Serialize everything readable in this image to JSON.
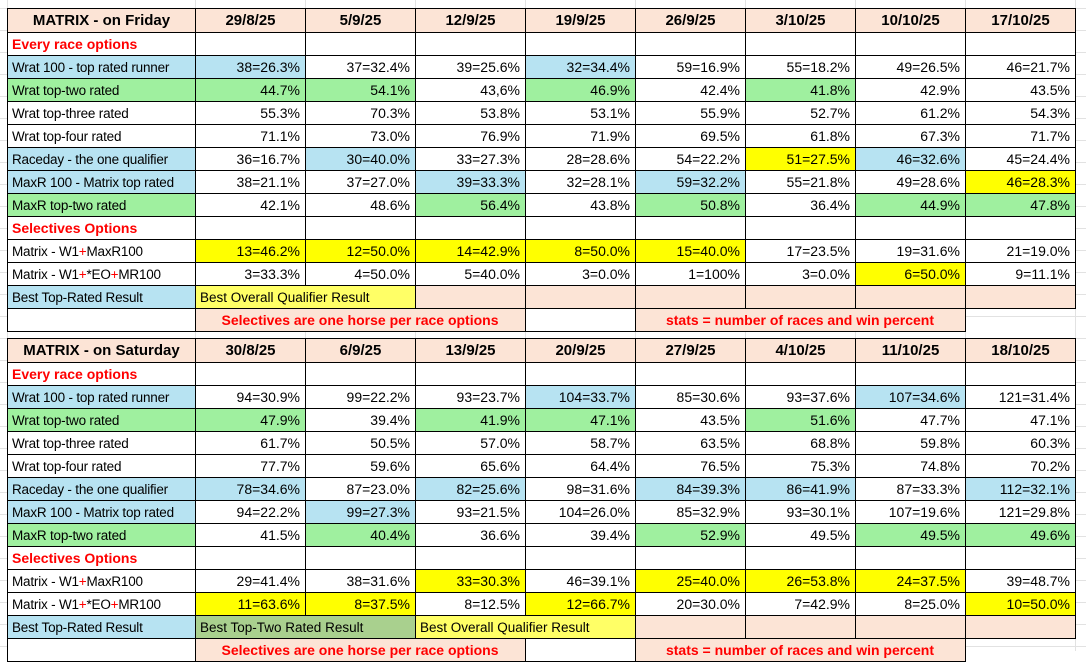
{
  "colors": {
    "header_peach": "#fce4d6",
    "highlight_blue": "#b7e3f2",
    "highlight_green": "#9ff09f",
    "highlight_yellow": "#ffff00",
    "result_yellow": "#ffff66",
    "result_green": "#a9d08e",
    "banner_red": "#ff0000",
    "gridline": "#e2e2e2"
  },
  "tables": [
    {
      "title": "MATRIX - on Friday",
      "dates": [
        "29/8/25",
        "5/9/25",
        "12/9/25",
        "19/9/25",
        "26/9/25",
        "3/10/25",
        "10/10/25",
        "17/10/25"
      ],
      "rows": [
        {
          "type": "section",
          "label": "Every race options"
        },
        {
          "type": "data",
          "label": "Wrat 100 - top rated runner",
          "label_bg": "b",
          "cells": [
            [
              "38=26.3%",
              "b"
            ],
            [
              "37=32.4%",
              ""
            ],
            [
              "39=25.6%",
              ""
            ],
            [
              "32=34.4%",
              "b"
            ],
            [
              "59=16.9%",
              ""
            ],
            [
              "55=18.2%",
              ""
            ],
            [
              "49=26.5%",
              ""
            ],
            [
              "46=21.7%",
              ""
            ]
          ]
        },
        {
          "type": "data",
          "label": "Wrat top-two rated",
          "label_bg": "g",
          "cells": [
            [
              "44.7%",
              "g"
            ],
            [
              "54.1%",
              "g"
            ],
            [
              "43,6%",
              ""
            ],
            [
              "46.9%",
              "g"
            ],
            [
              "42.4%",
              ""
            ],
            [
              "41.8%",
              "g"
            ],
            [
              "42.9%",
              ""
            ],
            [
              "43.5%",
              ""
            ]
          ]
        },
        {
          "type": "data",
          "label": "Wrat top-three rated",
          "label_bg": "",
          "cells": [
            [
              "55.3%",
              ""
            ],
            [
              "70.3%",
              ""
            ],
            [
              "53.8%",
              ""
            ],
            [
              "53.1%",
              ""
            ],
            [
              "55.9%",
              ""
            ],
            [
              "52.7%",
              ""
            ],
            [
              "61.2%",
              ""
            ],
            [
              "54.3%",
              ""
            ]
          ]
        },
        {
          "type": "data",
          "label": "Wrat top-four rated",
          "label_bg": "",
          "cells": [
            [
              "71.1%",
              ""
            ],
            [
              "73.0%",
              ""
            ],
            [
              "76.9%",
              ""
            ],
            [
              "71.9%",
              ""
            ],
            [
              "69.5%",
              ""
            ],
            [
              "61.8%",
              ""
            ],
            [
              "67.3%",
              ""
            ],
            [
              "71.7%",
              ""
            ]
          ]
        },
        {
          "type": "data",
          "label": "Raceday - the one qualifier",
          "label_bg": "b",
          "cells": [
            [
              "36=16.7%",
              ""
            ],
            [
              "30=40.0%",
              "b"
            ],
            [
              "33=27.3%",
              ""
            ],
            [
              "28=28.6%",
              ""
            ],
            [
              "54=22.2%",
              ""
            ],
            [
              "51=27.5%",
              "y"
            ],
            [
              "46=32.6%",
              "b"
            ],
            [
              "45=24.4%",
              ""
            ]
          ]
        },
        {
          "type": "data",
          "label": "MaxR 100 - Matrix top rated",
          "label_bg": "b",
          "cells": [
            [
              "38=21.1%",
              ""
            ],
            [
              "37=27.0%",
              ""
            ],
            [
              "39=33.3%",
              "b"
            ],
            [
              "32=28.1%",
              ""
            ],
            [
              "59=32.2%",
              "b"
            ],
            [
              "55=21.8%",
              ""
            ],
            [
              "49=28.6%",
              ""
            ],
            [
              "46=28.3%",
              "y"
            ]
          ]
        },
        {
          "type": "data",
          "label": "MaxR top-two rated",
          "label_bg": "g",
          "cells": [
            [
              "42.1%",
              ""
            ],
            [
              "48.6%",
              ""
            ],
            [
              "56.4%",
              "g"
            ],
            [
              "43.8%",
              ""
            ],
            [
              "50.8%",
              "g"
            ],
            [
              "36.4%",
              ""
            ],
            [
              "44.9%",
              "g"
            ],
            [
              "47.8%",
              "g"
            ]
          ]
        },
        {
          "type": "section",
          "label": "Selectives Options"
        },
        {
          "type": "data",
          "label_parts": [
            [
              "Matrix - W1",
              ""
            ],
            [
              "+",
              "red"
            ],
            [
              "MaxR100",
              ""
            ]
          ],
          "label_bg": "",
          "cells": [
            [
              "13=46.2%",
              "y"
            ],
            [
              "12=50.0%",
              "y"
            ],
            [
              "14=42.9%",
              "y"
            ],
            [
              "8=50.0%",
              "y"
            ],
            [
              "15=40.0%",
              "y"
            ],
            [
              "17=23.5%",
              ""
            ],
            [
              "19=31.6%",
              ""
            ],
            [
              "21=19.0%",
              ""
            ]
          ]
        },
        {
          "type": "data",
          "label_parts": [
            [
              "Matrix - W1",
              ""
            ],
            [
              "+",
              "red"
            ],
            [
              "*EO",
              ""
            ],
            [
              "+",
              "red"
            ],
            [
              "MR100",
              ""
            ]
          ],
          "label_bg": "",
          "cells": [
            [
              "3=33.3%",
              ""
            ],
            [
              "4=50.0%",
              ""
            ],
            [
              "5=40.0%",
              ""
            ],
            [
              "3=0.0%",
              ""
            ],
            [
              "1=100%",
              ""
            ],
            [
              "3=0.0%",
              ""
            ],
            [
              "6=50.0%",
              "y"
            ],
            [
              "9=11.1%",
              ""
            ]
          ]
        }
      ],
      "best_row": {
        "label": "Best Top-Rated Result",
        "spans": [
          {
            "text": "Best Overall Qualifier Result",
            "bg": "py",
            "cols": 2
          }
        ],
        "trailing_cells": 6
      },
      "footer": {
        "selectives": "Selectives are one horse per race options",
        "stats": "stats = number of races and win percent"
      }
    },
    {
      "title": "MATRIX - on Saturday",
      "dates": [
        "30/8/25",
        "6/9/25",
        "13/9/25",
        "20/9/25",
        "27/9/25",
        "4/10/25",
        "11/10/25",
        "18/10/25"
      ],
      "rows": [
        {
          "type": "section",
          "label": "Every race options"
        },
        {
          "type": "data",
          "label": "Wrat 100 - top rated runner",
          "label_bg": "b",
          "cells": [
            [
              "94=30.9%",
              ""
            ],
            [
              "99=22.2%",
              ""
            ],
            [
              "93=23.7%",
              ""
            ],
            [
              "104=33.7%",
              "b"
            ],
            [
              "85=30.6%",
              ""
            ],
            [
              "93=37.6%",
              ""
            ],
            [
              "107=34.6%",
              "b"
            ],
            [
              "121=31.4%",
              ""
            ]
          ]
        },
        {
          "type": "data",
          "label": "Wrat top-two rated",
          "label_bg": "g",
          "cells": [
            [
              "47.9%",
              "g"
            ],
            [
              "39.4%",
              ""
            ],
            [
              "41.9%",
              "g"
            ],
            [
              "47.1%",
              "g"
            ],
            [
              "43.5%",
              ""
            ],
            [
              "51.6%",
              "g"
            ],
            [
              "47.7%",
              ""
            ],
            [
              "47.1%",
              ""
            ]
          ]
        },
        {
          "type": "data",
          "label": "Wrat top-three rated",
          "label_bg": "",
          "cells": [
            [
              "61.7%",
              ""
            ],
            [
              "50.5%",
              ""
            ],
            [
              "57.0%",
              ""
            ],
            [
              "58.7%",
              ""
            ],
            [
              "63.5%",
              ""
            ],
            [
              "68.8%",
              ""
            ],
            [
              "59.8%",
              ""
            ],
            [
              "60.3%",
              ""
            ]
          ]
        },
        {
          "type": "data",
          "label": "Wrat top-four rated",
          "label_bg": "",
          "cells": [
            [
              "77.7%",
              ""
            ],
            [
              "59.6%",
              ""
            ],
            [
              "65.6%",
              ""
            ],
            [
              "64.4%",
              ""
            ],
            [
              "76.5%",
              ""
            ],
            [
              "75.3%",
              ""
            ],
            [
              "74.8%",
              ""
            ],
            [
              "70.2%",
              ""
            ]
          ]
        },
        {
          "type": "data",
          "label": "Raceday - the one qualifier",
          "label_bg": "b",
          "cells": [
            [
              "78=34.6%",
              "b"
            ],
            [
              "87=23.0%",
              ""
            ],
            [
              "82=25.6%",
              "b"
            ],
            [
              "98=31.6%",
              ""
            ],
            [
              "84=39.3%",
              "b"
            ],
            [
              "86=41.9%",
              "b"
            ],
            [
              "87=33.3%",
              ""
            ],
            [
              "112=32.1%",
              "b"
            ]
          ]
        },
        {
          "type": "data",
          "label": "MaxR 100 - Matrix top rated",
          "label_bg": "b",
          "cells": [
            [
              "94=22.2%",
              ""
            ],
            [
              "99=27.3%",
              "b"
            ],
            [
              "93=21.5%",
              ""
            ],
            [
              "104=26.0%",
              ""
            ],
            [
              "85=32.9%",
              ""
            ],
            [
              "93=30.1%",
              ""
            ],
            [
              "107=19.6%",
              ""
            ],
            [
              "121=29.8%",
              ""
            ]
          ]
        },
        {
          "type": "data",
          "label": "MaxR top-two rated",
          "label_bg": "g",
          "cells": [
            [
              "41.5%",
              ""
            ],
            [
              "40.4%",
              "g"
            ],
            [
              "36.6%",
              ""
            ],
            [
              "39.4%",
              ""
            ],
            [
              "52.9%",
              "g"
            ],
            [
              "49.5%",
              ""
            ],
            [
              "49.5%",
              "g"
            ],
            [
              "49.6%",
              "g"
            ]
          ]
        },
        {
          "type": "section",
          "label": "Selectives Options"
        },
        {
          "type": "data",
          "label_parts": [
            [
              "Matrix - W1",
              ""
            ],
            [
              "+",
              "red"
            ],
            [
              "MaxR100",
              ""
            ]
          ],
          "label_bg": "",
          "cells": [
            [
              "29=41.4%",
              ""
            ],
            [
              "38=31.6%",
              ""
            ],
            [
              "33=30.3%",
              "y"
            ],
            [
              "46=39.1%",
              ""
            ],
            [
              "25=40.0%",
              "y"
            ],
            [
              "26=53.8%",
              "y"
            ],
            [
              "24=37.5%",
              "y"
            ],
            [
              "39=48.7%",
              ""
            ]
          ]
        },
        {
          "type": "data",
          "label_parts": [
            [
              "Matrix - W1",
              ""
            ],
            [
              "+",
              "red"
            ],
            [
              "*EO",
              ""
            ],
            [
              "+",
              "red"
            ],
            [
              "MR100",
              ""
            ]
          ],
          "label_bg": "",
          "cells": [
            [
              "11=63.6%",
              "y"
            ],
            [
              "8=37.5%",
              "y"
            ],
            [
              "8=12.5%",
              ""
            ],
            [
              "12=66.7%",
              "y"
            ],
            [
              "20=30.0%",
              ""
            ],
            [
              "7=42.9%",
              ""
            ],
            [
              "8=25.0%",
              ""
            ],
            [
              "10=50.0%",
              "y"
            ]
          ]
        }
      ],
      "best_row": {
        "label": "Best Top-Rated Result",
        "spans": [
          {
            "text": "Best Top-Two Rated Result",
            "bg": "rg",
            "cols": 2
          },
          {
            "text": "Best Overall Qualifier Result",
            "bg": "py",
            "cols": 2
          }
        ],
        "trailing_cells": 4
      },
      "footer": {
        "selectives": "Selectives are one horse per race options",
        "stats": "stats = number of races and win percent"
      }
    }
  ]
}
